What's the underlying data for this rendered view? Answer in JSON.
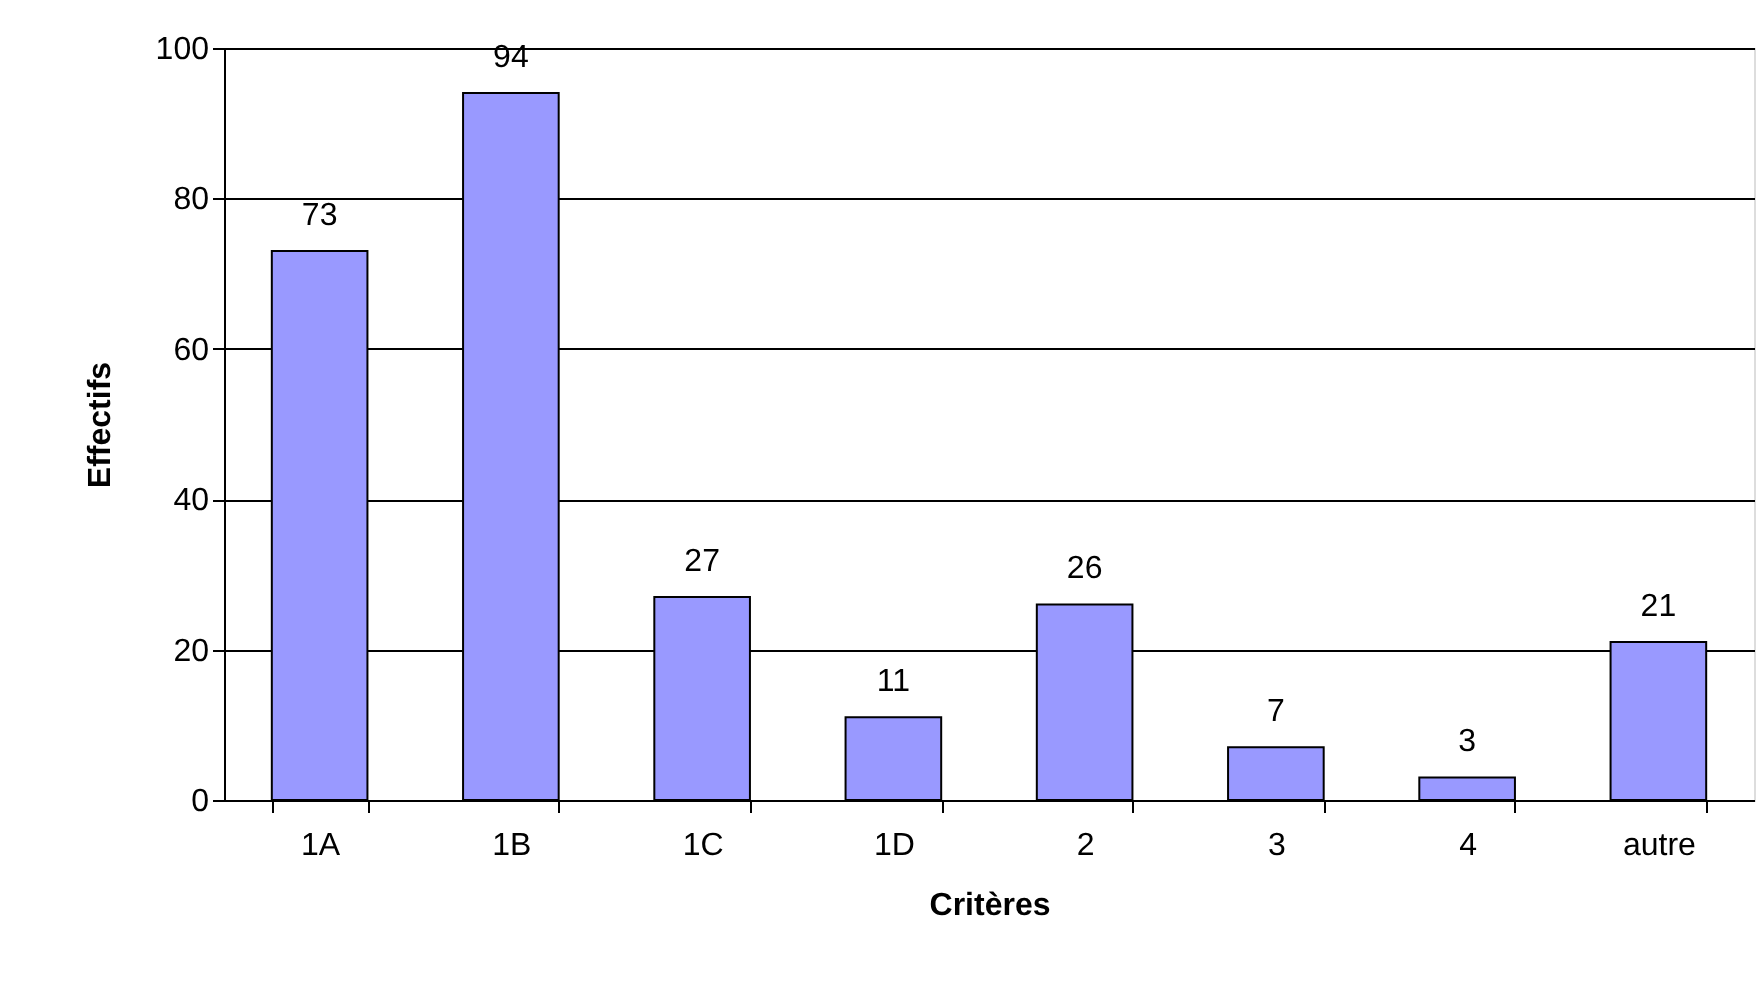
{
  "chart_data": {
    "type": "bar",
    "xlabel": "Critères",
    "ylabel": "Effectifs",
    "categories": [
      "1A",
      "1B",
      "1C",
      "1D",
      "2",
      "3",
      "4",
      "autre"
    ],
    "values": [
      73,
      94,
      27,
      11,
      26,
      7,
      3,
      21
    ],
    "color": "#9999ff",
    "ylim": [
      0,
      100
    ],
    "yticks": [
      0,
      20,
      40,
      60,
      80,
      100
    ],
    "grid": "y",
    "data_labels": true
  }
}
